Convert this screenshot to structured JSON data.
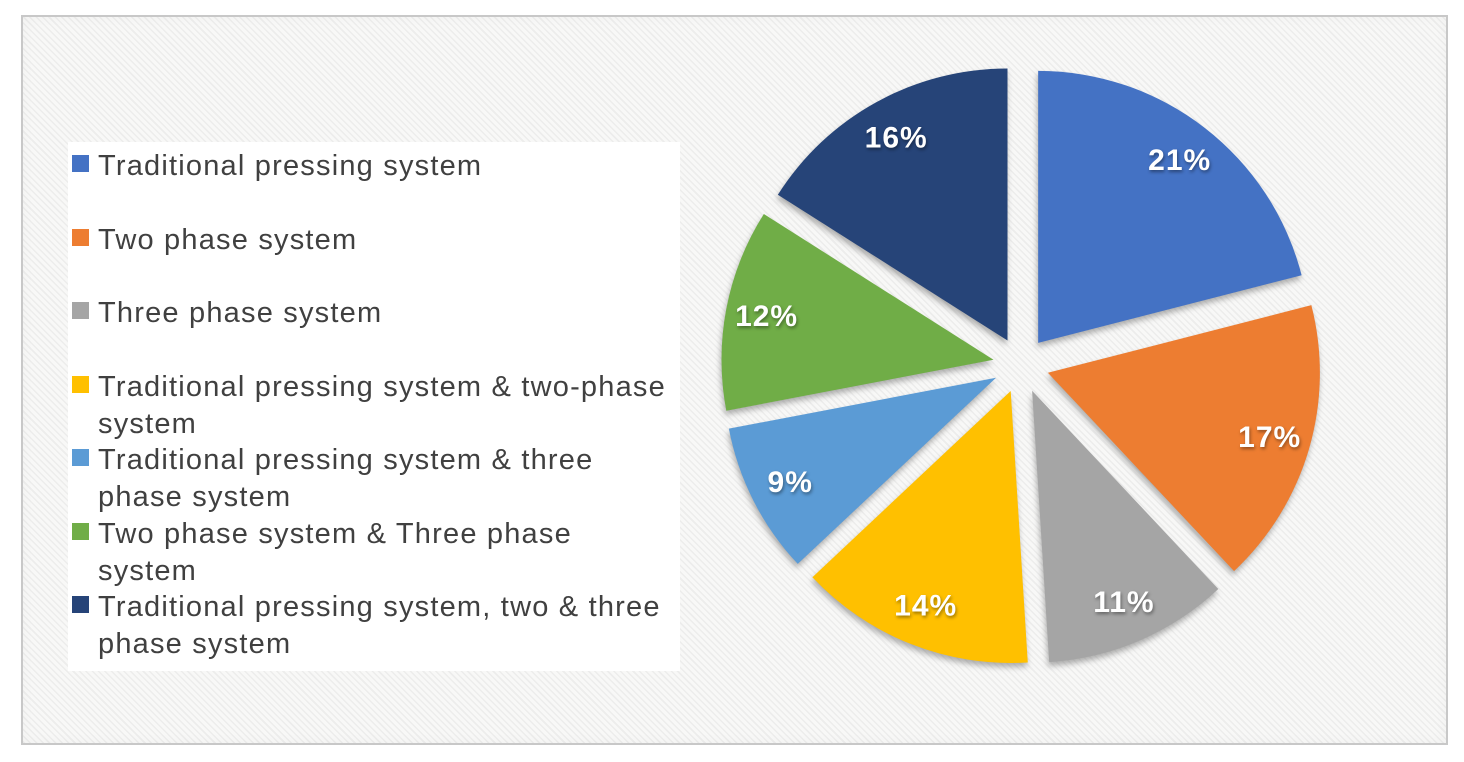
{
  "figure": {
    "frame_border_color": "#c8c8c8",
    "frame_background_color": "#f8f8f7",
    "legend_background_color": "#ffffff"
  },
  "chart_data": {
    "type": "pie",
    "exploded": true,
    "start_angle_deg": 0,
    "direction": "clockwise",
    "legend_position": "left",
    "units": "percent",
    "total": 100,
    "data_label_color": "#ffffff",
    "legend_text_color": "#404040",
    "slices": [
      {
        "label": "Traditional pressing system",
        "value": 21,
        "data_label": "21%",
        "color": "#4472C4"
      },
      {
        "label": "Two phase system",
        "value": 17,
        "data_label": "17%",
        "color": "#ED7D31"
      },
      {
        "label": "Three phase system",
        "value": 11,
        "data_label": "11%",
        "color": "#A5A5A5"
      },
      {
        "label": "Traditional pressing system & two-phase system",
        "value": 14,
        "data_label": "14%",
        "color": "#FFC000"
      },
      {
        "label": "Traditional pressing system & three phase system",
        "value": 9,
        "data_label": "9%",
        "color": "#5B9BD5"
      },
      {
        "label": "Two phase system & Three phase system",
        "value": 12,
        "data_label": "12%",
        "color": "#70AD47"
      },
      {
        "label": "Traditional pressing system, two & three phase system",
        "value": 16,
        "data_label": "16%",
        "color": "#264478"
      }
    ]
  }
}
